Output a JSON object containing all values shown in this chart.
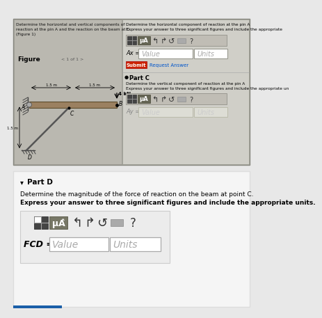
{
  "bg_color": "#e8e8e8",
  "screenshot_bg": "#b0afa8",
  "left_panel_bg": "#bab8b0",
  "right_panel_bg": "#d0cfc8",
  "problem_text_line1": "Determine the horizontal and vertical components of",
  "problem_text_line2": "reaction at the pin A and the reaction on the beam at C.",
  "problem_text_line3": "(Figure 1)",
  "figure_label": "Figure",
  "figure_nav": "< 1 of 1 >",
  "part_b_title": "Determine the horizontal component of reaction at the pin A",
  "part_b_desc": "Express your answer to three significant figures and include the appropriate",
  "part_b_label": "Ax =",
  "part_b_value": "Value",
  "part_b_units": "Units",
  "submit_text": "Submit",
  "request_text": "Request Answer",
  "part_c_header": "Part C",
  "part_c_desc1": "Determine the vertical component of reaction at the pin A",
  "part_c_desc2": "Express your answer to three significant figures and include the appropriate un",
  "part_c_label": "Ay =",
  "part_c_value": "Value",
  "part_c_units": "Units",
  "bottom_bg": "#f0f0f0",
  "part_d_header": "Part D",
  "part_d_desc1": "Determine the magnitude of the force of reaction on the beam at point C.",
  "part_d_desc2": "Express your answer to three significant figures and include the appropriate units.",
  "part_d_label": "FCD =",
  "part_d_value": "Value",
  "part_d_units": "Units",
  "force_label": "4 kN",
  "dim1": "1.5 m",
  "dim2": "1.5 m",
  "dim3": "1.5 m",
  "label_A": "A",
  "label_B": "B",
  "label_C": "C",
  "label_D": "D",
  "submit_color": "#cc2200",
  "blue_line_color": "#1a5fa8"
}
